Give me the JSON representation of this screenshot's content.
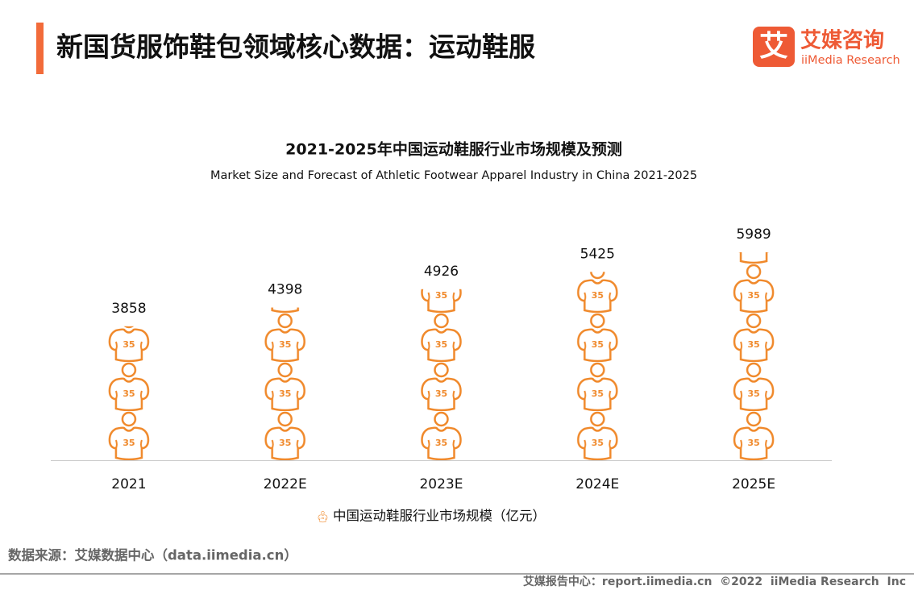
{
  "header": {
    "title": "新国货服饰鞋包领域核心数据：运动鞋服",
    "logo_mark": "艾",
    "logo_cn": "艾媒咨询",
    "logo_en": "iiMedia Research"
  },
  "chart_data": {
    "type": "pictograph",
    "title": "2021-2025年中国运动鞋服行业市场规模及预测",
    "subtitle": "Market Size and Forecast of Athletic Footwear Apparel Industry in China 2021-2025",
    "categories": [
      "2021",
      "2022E",
      "2023E",
      "2024E",
      "2025E"
    ],
    "series": [
      {
        "name": "中国运动鞋服行业市场规模（亿元）",
        "color": "#f0892b",
        "values": [
          3858,
          4398,
          4926,
          5425,
          5989
        ]
      }
    ]
  },
  "source": "数据来源：艾媒数据中心（data.iimedia.cn）",
  "footer": "艾媒报告中心：report.iimedia.cn  ©2022  iiMedia Research  Inc"
}
